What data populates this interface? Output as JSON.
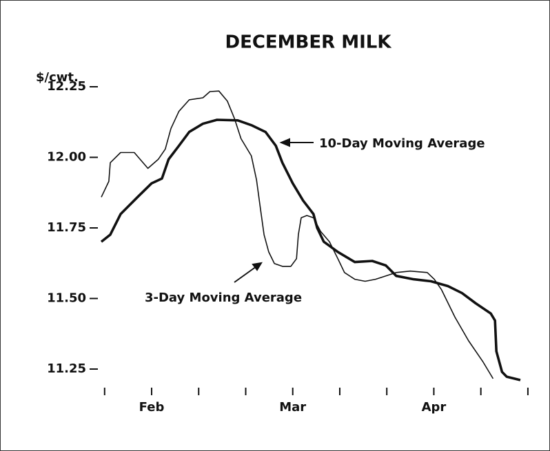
{
  "chart_data": {
    "type": "line",
    "title": "DECEMBER MILK",
    "y_label": "$/cwt.",
    "categories": [
      null,
      "Feb",
      null,
      null,
      "Mar",
      null,
      null,
      "Apr",
      null,
      null
    ],
    "xlim": [
      -0.07,
      8.84
    ],
    "ylim": [
      11.25,
      12.25
    ],
    "yticks": [
      11.25,
      {
        "value": 11.5,
        "label": "11.50"
      },
      11.75,
      {
        "value": 12,
        "label": "12.00"
      },
      12.25
    ],
    "annotations": [
      "10-Day Moving Average",
      "3-Day Moving Average"
    ],
    "series": [
      {
        "name": "3-Day Moving Average",
        "color": "#111111",
        "x": [
          -0.07,
          0.09,
          0.12,
          0.34,
          0.63,
          0.92,
          1.14,
          1.29,
          1.41,
          1.58,
          1.8,
          2.09,
          2.24,
          2.43,
          2.61,
          2.76,
          2.9,
          3.12,
          3.23,
          3.31,
          3.39,
          3.49,
          3.61,
          3.78,
          3.96,
          4.08,
          4.12,
          4.18,
          4.3,
          4.44,
          4.59,
          4.78,
          4.96,
          5.1,
          5.32,
          5.54,
          5.76,
          5.98,
          6.2,
          6.5,
          6.86,
          7.01,
          7.16,
          7.45,
          7.74,
          8.04,
          8.26
        ],
        "values": [
          11.859,
          11.915,
          11.981,
          12.017,
          12.017,
          11.961,
          11.993,
          12.029,
          12.102,
          12.163,
          12.204,
          12.211,
          12.233,
          12.235,
          12.199,
          12.138,
          12.066,
          12.005,
          11.92,
          11.823,
          11.726,
          11.665,
          11.624,
          11.614,
          11.614,
          11.641,
          11.726,
          11.786,
          11.794,
          11.786,
          11.738,
          11.701,
          11.641,
          11.592,
          11.568,
          11.561,
          11.568,
          11.58,
          11.592,
          11.597,
          11.592,
          11.568,
          11.532,
          11.434,
          11.35,
          11.277,
          11.216
        ]
      },
      {
        "name": "10-Day Moving Average",
        "color": "#111111",
        "x": [
          -0.07,
          0.12,
          0.34,
          0.7,
          1.0,
          1.22,
          1.36,
          1.58,
          1.8,
          2.09,
          2.39,
          2.83,
          3.12,
          3.42,
          3.64,
          3.78,
          4.0,
          4.22,
          4.44,
          4.52,
          4.66,
          4.96,
          5.32,
          5.69,
          5.98,
          6.2,
          6.57,
          6.94,
          7.3,
          7.6,
          7.89,
          8.21,
          8.3,
          8.33,
          8.45,
          8.55,
          8.84
        ],
        "values": [
          11.701,
          11.726,
          11.799,
          11.859,
          11.908,
          11.925,
          11.993,
          12.041,
          12.09,
          12.119,
          12.133,
          12.131,
          12.114,
          12.09,
          12.041,
          11.981,
          11.908,
          11.847,
          11.799,
          11.75,
          11.701,
          11.665,
          11.629,
          11.633,
          11.617,
          11.58,
          11.568,
          11.561,
          11.544,
          11.519,
          11.483,
          11.447,
          11.422,
          11.313,
          11.24,
          11.223,
          11.211
        ]
      }
    ]
  }
}
